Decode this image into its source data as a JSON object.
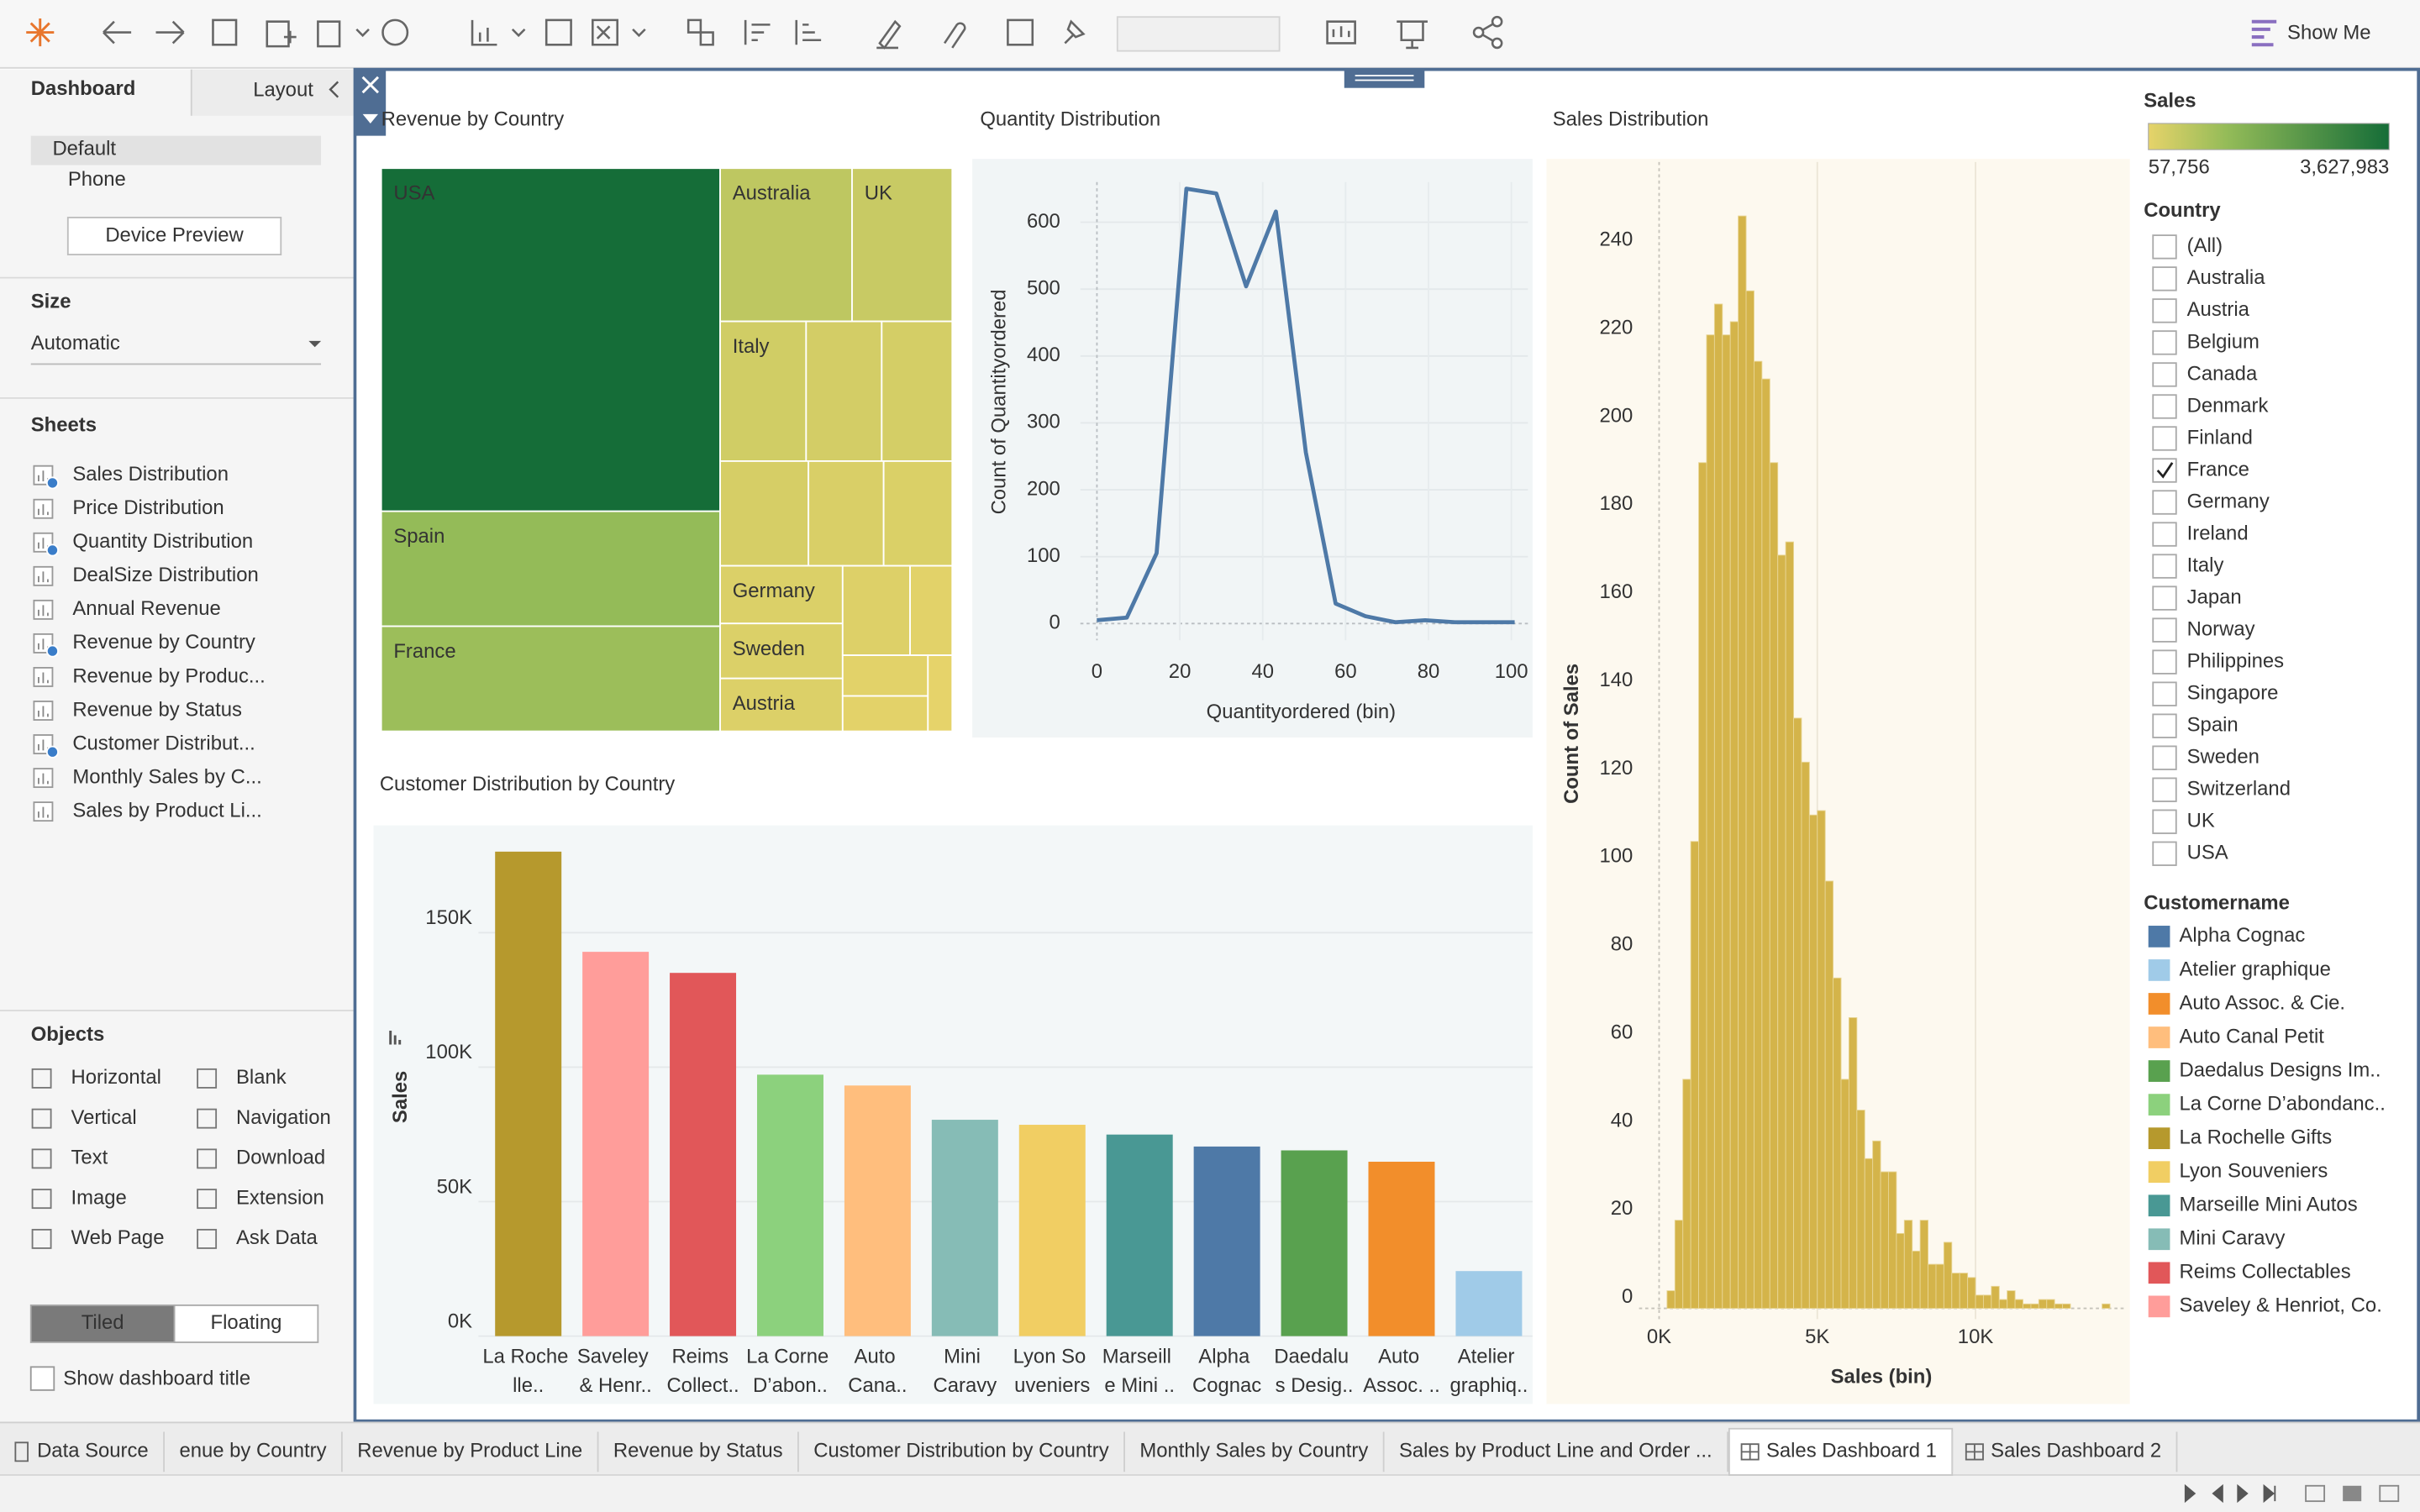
{
  "toolbar": {
    "show_me": "Show Me"
  },
  "sidebar": {
    "tabs": [
      "Dashboard",
      "Layout"
    ],
    "devices": [
      "Default",
      "Phone"
    ],
    "device_preview": "Device Preview",
    "size_title": "Size",
    "size_value": "Automatic",
    "sheets_title": "Sheets",
    "sheets": [
      {
        "name": "Sales Distribution",
        "in_dashboard": true
      },
      {
        "name": "Price Distribution",
        "in_dashboard": false
      },
      {
        "name": "Quantity Distribution",
        "in_dashboard": true
      },
      {
        "name": "DealSize Distribution",
        "in_dashboard": false
      },
      {
        "name": "Annual Revenue",
        "in_dashboard": false
      },
      {
        "name": "Revenue by Country",
        "in_dashboard": true
      },
      {
        "name": "Revenue by Produc...",
        "in_dashboard": false
      },
      {
        "name": "Revenue by Status",
        "in_dashboard": false
      },
      {
        "name": "Customer Distribut...",
        "in_dashboard": true
      },
      {
        "name": "Monthly Sales by C...",
        "in_dashboard": false
      },
      {
        "name": "Sales by Product Li...",
        "in_dashboard": false
      }
    ],
    "objects_title": "Objects",
    "objects": [
      "Horizontal",
      "Blank",
      "Vertical",
      "Navigation",
      "Text",
      "Download",
      "Image",
      "Extension",
      "Web Page",
      "Ask Data"
    ],
    "layout_modes": [
      {
        "label": "Tiled",
        "selected": true
      },
      {
        "label": "Floating",
        "selected": false
      }
    ],
    "show_title": {
      "label": "Show dashboard title",
      "checked": false
    }
  },
  "chart_data": [
    {
      "type": "treemap",
      "title": "Revenue by Country",
      "title_color": "#5aa44f",
      "categories": [
        "USA",
        "Spain",
        "France",
        "Australia",
        "UK",
        "Italy",
        null,
        null,
        null,
        null,
        null,
        "Germany",
        "Sweden",
        "Austria",
        null,
        null,
        null,
        null,
        null
      ],
      "values": [
        3627983,
        1215686,
        1110916,
        630623,
        478880,
        374674,
        329581,
        307463,
        288488,
        245637,
        224078,
        220472,
        210014,
        202063,
        188167,
        117714,
        108413,
        94015,
        57756
      ]
    },
    {
      "type": "line",
      "title": "Quantity Distribution",
      "title_color": "#333333",
      "x_label": "Quantityordered (bin)",
      "y_label": "Count of Quantityordered",
      "x": [
        0,
        7.2,
        14.4,
        21.6,
        28.8,
        36,
        43.2,
        50.4,
        57.6,
        64.8,
        72,
        79.2,
        86.4,
        93.6,
        100.8
      ],
      "values": [
        5,
        9,
        105,
        650,
        643,
        504,
        616,
        256,
        30,
        11,
        2,
        5,
        2,
        2,
        2
      ],
      "color": "#4e79a7",
      "xlim": [
        -4,
        104
      ],
      "ylim": [
        -25,
        660
      ],
      "xticks": [
        0,
        20,
        40,
        60,
        80,
        100
      ],
      "yticks": [
        0,
        100,
        200,
        300,
        400,
        500,
        600
      ],
      "grid": true
    },
    {
      "type": "bar",
      "title": "Customer Distribution by Country",
      "title_color": "#333333",
      "y_label": "Sales",
      "categories": [
        "La Roche lle..",
        "Saveley & Henr..",
        "Reims Collect..",
        "La Corne D’abon..",
        "Auto Cana..",
        "Mini Caravy",
        "Lyon So uveniers",
        "Marseill e Mini ..",
        "Alpha Cognac",
        "Daedalu s Desig..",
        "Auto Assoc. ..",
        "Atelier graphiq.."
      ],
      "values": [
        180125,
        142874,
        135043,
        97204,
        93171,
        80438,
        78570,
        74936,
        70488,
        69052,
        64834,
        24180
      ],
      "colors": [
        "#b6992d",
        "#ff9d9a",
        "#e15759",
        "#8cd17d",
        "#ffbe7d",
        "#86bcb6",
        "#f1ce63",
        "#499894",
        "#4e79a7",
        "#59a14f",
        "#f28e2b",
        "#a0cbe8"
      ],
      "ylim": [
        0,
        187000
      ],
      "yticks": [
        {
          "value": 0,
          "label": "0K"
        },
        {
          "value": 50000,
          "label": "50K"
        },
        {
          "value": 100000,
          "label": "100K"
        },
        {
          "value": 150000,
          "label": "150K"
        }
      ],
      "grid": true
    },
    {
      "type": "histogram",
      "title": "Sales Distribution",
      "title_color": "#f28e2b",
      "x_label": "Sales (bin)",
      "y_label": "Count of Sales",
      "bins": [
        250,
        500,
        750,
        1000,
        1250,
        1500,
        1750,
        2000,
        2250,
        2500,
        2750,
        3000,
        3250,
        3500,
        3750,
        4000,
        4250,
        4500,
        4750,
        5000,
        5250,
        5500,
        5750,
        6000,
        6250,
        6500,
        6750,
        7000,
        7250,
        7500,
        7750,
        8000,
        8250,
        8500,
        8750,
        9000,
        9250,
        9500,
        9750,
        10000,
        10250,
        10500,
        10750,
        11000,
        11250,
        11500,
        11750,
        12000,
        12250,
        12500,
        12750,
        13000,
        13250,
        13500,
        13750,
        14000,
        14250
      ],
      "values": [
        4,
        20,
        52,
        106,
        192,
        221,
        228,
        221,
        224,
        248,
        231,
        215,
        211,
        192,
        171,
        174,
        134,
        124,
        112,
        113,
        97,
        75,
        52,
        66,
        45,
        34,
        38,
        31,
        31,
        17,
        20,
        13,
        20,
        10,
        10,
        15,
        8,
        8,
        7,
        3,
        3,
        5,
        2,
        4,
        2,
        1,
        1,
        2,
        2,
        1,
        1,
        0,
        0,
        0,
        0,
        1
      ],
      "color": "#d4b44a",
      "xlim": [
        -634,
        14780
      ],
      "ylim": [
        -2.45,
        255
      ],
      "xticks": [
        {
          "value": 0,
          "label": "0K"
        },
        {
          "value": 5000,
          "label": "5K"
        },
        {
          "value": 10000,
          "label": "10K"
        }
      ],
      "yticks": [
        0,
        20,
        40,
        60,
        80,
        100,
        120,
        140,
        160,
        180,
        200,
        220,
        240
      ],
      "grid": true
    }
  ],
  "legends": {
    "sales": {
      "title": "Sales",
      "range": [
        {
          "value": 57756,
          "label": "57,756"
        },
        {
          "value": 3627983,
          "label": "3,627,983"
        }
      ],
      "colors": [
        "#e6d36a",
        "#93bb58",
        "#156d38"
      ]
    },
    "country": {
      "title": "Country",
      "items": [
        {
          "label": "(All)",
          "checked": false
        },
        {
          "label": "Australia",
          "checked": false
        },
        {
          "label": "Austria",
          "checked": false
        },
        {
          "label": "Belgium",
          "checked": false
        },
        {
          "label": "Canada",
          "checked": false
        },
        {
          "label": "Denmark",
          "checked": false
        },
        {
          "label": "Finland",
          "checked": false
        },
        {
          "label": "France",
          "checked": true
        },
        {
          "label": "Germany",
          "checked": false
        },
        {
          "label": "Ireland",
          "checked": false
        },
        {
          "label": "Italy",
          "checked": false
        },
        {
          "label": "Japan",
          "checked": false
        },
        {
          "label": "Norway",
          "checked": false
        },
        {
          "label": "Philippines",
          "checked": false
        },
        {
          "label": "Singapore",
          "checked": false
        },
        {
          "label": "Spain",
          "checked": false
        },
        {
          "label": "Sweden",
          "checked": false
        },
        {
          "label": "Switzerland",
          "checked": false
        },
        {
          "label": "UK",
          "checked": false
        },
        {
          "label": "USA",
          "checked": false
        }
      ]
    },
    "customername": {
      "title": "Customername",
      "items": [
        {
          "label": "Alpha Cognac",
          "color": "#4e79a7"
        },
        {
          "label": "Atelier graphique",
          "color": "#a0cbe8"
        },
        {
          "label": "Auto Assoc. & Cie.",
          "color": "#f28e2b"
        },
        {
          "label": "Auto Canal Petit",
          "color": "#ffbe7d"
        },
        {
          "label": "Daedalus Designs Im..",
          "color": "#59a14f"
        },
        {
          "label": "La Corne D’abondanc..",
          "color": "#8cd17d"
        },
        {
          "label": "La Rochelle Gifts",
          "color": "#b6992d"
        },
        {
          "label": "Lyon Souveniers",
          "color": "#f1ce63"
        },
        {
          "label": "Marseille Mini Autos",
          "color": "#499894"
        },
        {
          "label": "Mini Caravy",
          "color": "#86bcb6"
        },
        {
          "label": "Reims Collectables",
          "color": "#e15759"
        },
        {
          "label": "Saveley & Henriot, Co.",
          "color": "#ff9d9a"
        }
      ]
    }
  },
  "tabs": [
    {
      "label": "Data Source",
      "kind": "data",
      "active": false
    },
    {
      "label": "enue by Country",
      "kind": "sheet",
      "active": false
    },
    {
      "label": "Revenue by Product Line",
      "kind": "sheet",
      "active": false
    },
    {
      "label": "Revenue by Status",
      "kind": "sheet",
      "active": false
    },
    {
      "label": "Customer Distribution by Country",
      "kind": "sheet",
      "active": false
    },
    {
      "label": "Monthly Sales by Country",
      "kind": "sheet",
      "active": false
    },
    {
      "label": "Sales by Product Line and Order ...",
      "kind": "sheet",
      "active": false
    },
    {
      "label": "Sales Dashboard 1",
      "kind": "dashboard",
      "active": true
    },
    {
      "label": "Sales Dashboard 2",
      "kind": "dashboard",
      "active": false
    }
  ]
}
